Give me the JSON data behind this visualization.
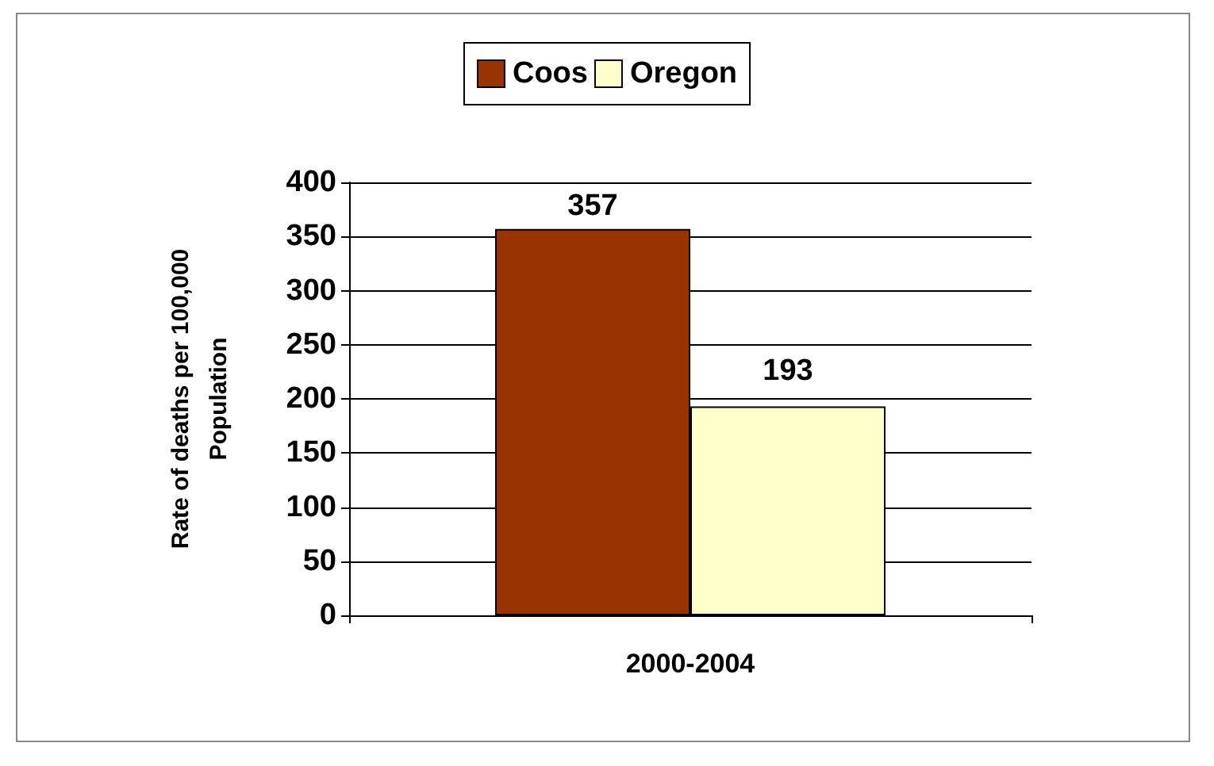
{
  "chart_data": {
    "type": "bar",
    "categories": [
      "2000-2004"
    ],
    "series": [
      {
        "name": "Coos",
        "color": "#993300",
        "values": [
          357
        ]
      },
      {
        "name": "Oregon",
        "color": "#ffffcc",
        "values": [
          193
        ]
      }
    ],
    "ylabel": "Rate of deaths per 100,000\nPopulation",
    "ylim": [
      0,
      400
    ],
    "yticks": [
      0,
      50,
      100,
      150,
      200,
      250,
      300,
      350,
      400
    ],
    "grid": "y",
    "legend": "top",
    "data_labels": true
  }
}
